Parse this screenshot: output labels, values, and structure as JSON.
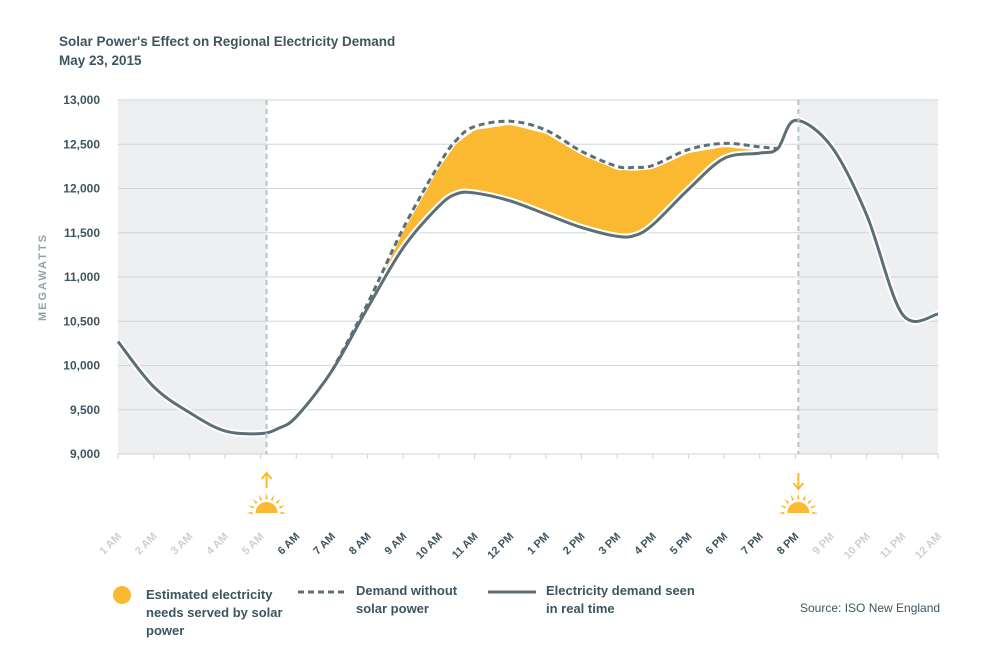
{
  "title": "Solar Power's Effect on Regional Electricity Demand",
  "subtitle": "May 23, 2015",
  "source": "Source: ISO New England",
  "colors": {
    "solar_fill": "#fbb931",
    "demand_line": "#5c6e76",
    "night_shade": "#eeeff0",
    "grid": "#cfd5d8",
    "tick_dark": "#3d5560",
    "tick_light": "#c9d1d5",
    "sun": "#fbb931"
  },
  "legend": {
    "solar": "Estimated electricity needs served by solar power",
    "without_solar": "Demand without solar power",
    "real_time": "Electricity demand seen in real time"
  },
  "chart_data": {
    "type": "area",
    "title": "Solar Power's Effect on Regional Electricity Demand",
    "subtitle": "May 23, 2015",
    "ylabel": "MEGAWATTS",
    "xlabel": "",
    "ylim": [
      9000,
      13000
    ],
    "yticks": [
      9000,
      9500,
      10000,
      10500,
      11000,
      11500,
      12000,
      12500,
      13000
    ],
    "yticklabels": [
      "9,000",
      "9,500",
      "10,000",
      "10,500",
      "11,000",
      "11,500",
      "12,000",
      "12,500",
      "13,000"
    ],
    "categories": [
      "1 AM",
      "2 AM",
      "3 AM",
      "4 AM",
      "5 AM",
      "6 AM",
      "7 AM",
      "8 AM",
      "9 AM",
      "10 AM",
      "11 AM",
      "12 PM",
      "1 PM",
      "2 PM",
      "3 PM",
      "4 PM",
      "5 PM",
      "6 PM",
      "7 PM",
      "8 PM",
      "9 PM",
      "10 PM",
      "11 PM",
      "12 AM"
    ],
    "daylight_categories": [
      "6 AM",
      "7 AM",
      "8 AM",
      "9 AM",
      "10 AM",
      "11 AM",
      "12 PM",
      "1 PM",
      "2 PM",
      "3 PM",
      "4 PM",
      "5 PM",
      "6 PM",
      "7 PM",
      "8 PM"
    ],
    "sunrise": "5:10 AM",
    "sunset": "8:05 PM",
    "grid": true,
    "series": [
      {
        "name": "Electricity demand seen in real time",
        "style": "solid",
        "x": [
          1,
          2,
          3,
          4,
          5,
          5.5,
          6,
          7,
          8,
          9,
          10,
          10.5,
          11,
          12,
          13,
          14,
          15,
          15.5,
          16,
          17,
          18,
          19,
          19.5,
          20,
          21,
          22,
          23,
          24
        ],
        "values": [
          10270,
          9760,
          9470,
          9260,
          9230,
          9290,
          9420,
          9940,
          10650,
          11330,
          11800,
          11940,
          11950,
          11860,
          11710,
          11560,
          11460,
          11470,
          11590,
          11990,
          12340,
          12400,
          12450,
          12770,
          12480,
          11700,
          10580,
          10580
        ]
      },
      {
        "name": "Demand without solar power",
        "style": "dashed",
        "x": [
          7,
          8,
          9,
          10,
          10.5,
          11,
          12,
          13,
          14,
          15,
          15.5,
          16,
          17,
          18,
          19,
          19.5
        ],
        "values": [
          9940,
          10700,
          11550,
          12270,
          12550,
          12700,
          12760,
          12660,
          12420,
          12250,
          12240,
          12260,
          12440,
          12510,
          12470,
          12450
        ]
      }
    ]
  }
}
